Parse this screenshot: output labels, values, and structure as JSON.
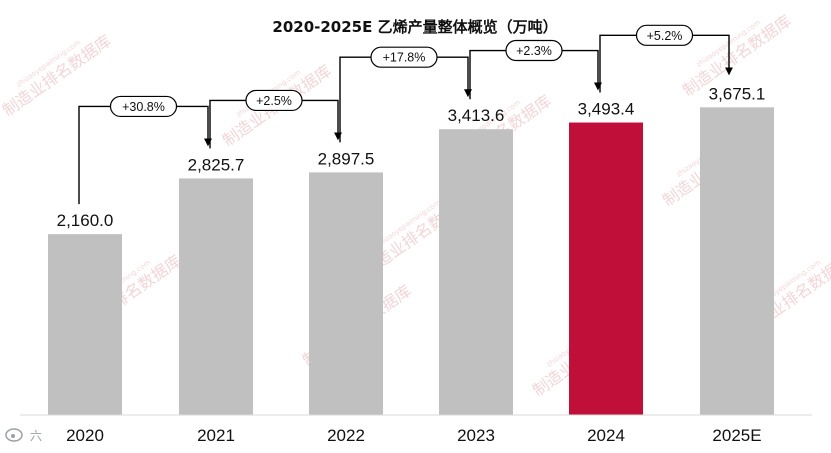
{
  "chart_data": {
    "type": "bar",
    "title": "2020-2025E 乙烯产量整体概览（万吨）",
    "categories": [
      "2020",
      "2021",
      "2022",
      "2023",
      "2024",
      "2025E"
    ],
    "values": [
      2160.0,
      2825.7,
      2897.5,
      3413.6,
      3493.4,
      3675.1
    ],
    "value_labels": [
      "2,160.0",
      "2,825.7",
      "2,897.5",
      "3,413.6",
      "3,493.4",
      "3,675.1"
    ],
    "growth_labels": [
      "+30.8%",
      "+2.5%",
      "+17.8%",
      "+2.3%",
      "+5.2%"
    ],
    "ylim": [
      0,
      4300
    ],
    "grid": false,
    "bar_color": "#c0c0c0",
    "highlight_index": 4,
    "highlight_color": "#c0103a"
  },
  "watermark": {
    "text": "制造业排名数据库",
    "url": "zhizaoyepaiming.com",
    "color": "#e8b4b8"
  },
  "footer": {
    "brand_text": "六",
    "logo_icon": "weibo-icon"
  }
}
